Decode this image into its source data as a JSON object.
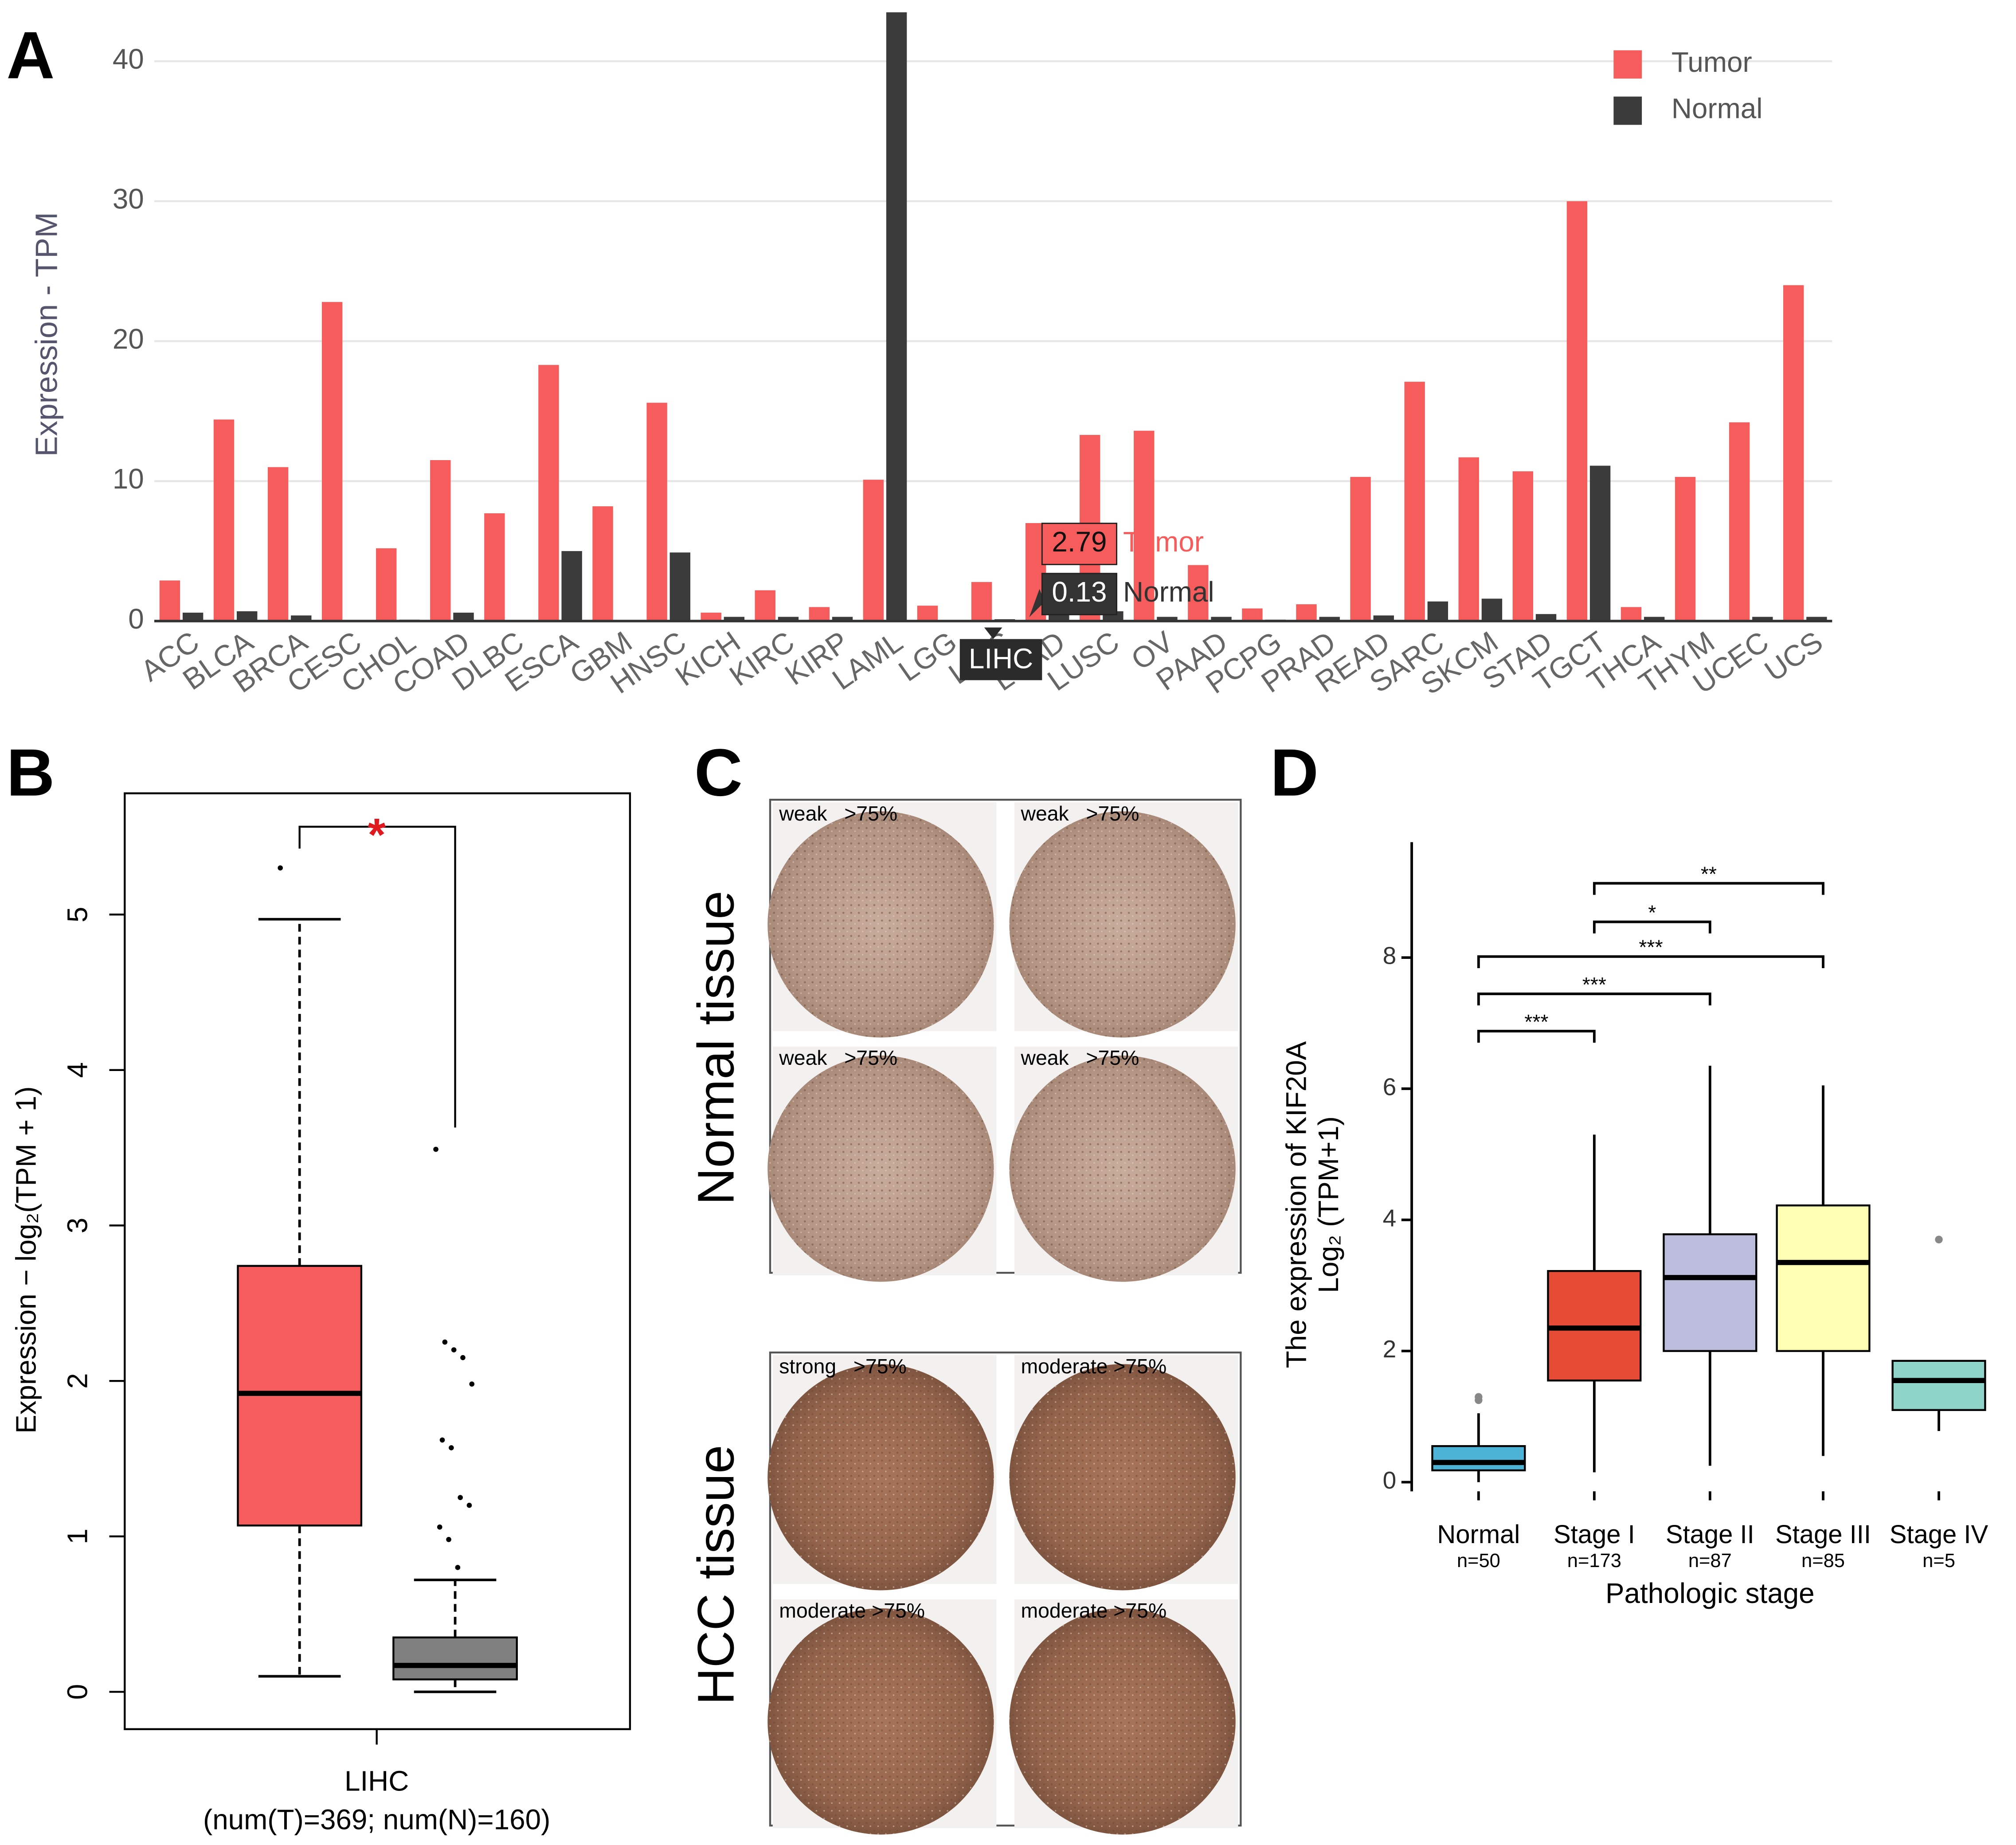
{
  "chart_data": [
    {
      "type": "bar",
      "panel_label": "A",
      "y_label": "Expression - TPM",
      "categories": [
        "ACC",
        "BLCA",
        "BRCA",
        "CESC",
        "CHOL",
        "COAD",
        "DLBC",
        "ESCA",
        "GBM",
        "HNSC",
        "KICH",
        "KIRC",
        "KIRP",
        "LAML",
        "LGG",
        "LIHC",
        "LUAD",
        "LUSC",
        "OV",
        "PAAD",
        "PCPG",
        "PRAD",
        "READ",
        "SARC",
        "SKCM",
        "STAD",
        "TGCT",
        "THCA",
        "THYM",
        "UCEC",
        "UCS"
      ],
      "series": [
        {
          "name": "Tumor",
          "color": "#f65c5c",
          "values": [
            2.9,
            14.4,
            11,
            22.8,
            5.2,
            11.5,
            7.7,
            18.3,
            8.2,
            15.6,
            0.6,
            2.2,
            1,
            10.1,
            1.1,
            2.79,
            7,
            13.3,
            13.6,
            4,
            0.9,
            1.2,
            10.3,
            17.1,
            11.7,
            10.7,
            30,
            1,
            10.3,
            14.2,
            24
          ]
        },
        {
          "name": "Normal",
          "color": "#3b3b3b",
          "values": [
            0.6,
            0.7,
            0.4,
            0,
            0.1,
            0.6,
            0,
            5,
            0,
            4.9,
            0.3,
            0.3,
            0.3,
            43.5,
            0,
            0.13,
            0.5,
            0.7,
            0.3,
            0.3,
            0.1,
            0.3,
            0.4,
            1.4,
            1.6,
            0.5,
            11.1,
            0.3,
            0,
            0.3,
            0.3
          ]
        }
      ],
      "ylim": [
        0,
        44
      ],
      "yticks": [
        0,
        10,
        20,
        30,
        40
      ],
      "grid": true,
      "legend": "top-right",
      "tooltip": {
        "category": "LIHC"
      }
    },
    {
      "type": "box",
      "panel_label": "B",
      "y_label": "Expression − log₂(TPM + 1)",
      "x_label": "LIHC",
      "x_sublabel": "(num(T)=369; num(N)=160)",
      "groups": [
        {
          "color": "#f65c5c",
          "min": 0.1,
          "q1": 1.07,
          "median": 1.92,
          "q3": 2.74,
          "max": 4.97,
          "outliers": [
            5.3
          ]
        },
        {
          "color": "#808080",
          "min": 0,
          "q1": 0.08,
          "median": 0.17,
          "q3": 0.35,
          "max": 0.72,
          "outliers": [
            3.49,
            2.25,
            2.2,
            2.15,
            1.98,
            1.62,
            1.57,
            1.25,
            1.2,
            1.06,
            0.98,
            0.8
          ]
        }
      ],
      "ylim": [
        -0.24,
        5.78
      ],
      "yticks": [
        0,
        1,
        2,
        3,
        4,
        5
      ],
      "significance": "*"
    },
    {
      "type": "box",
      "panel_label": "D",
      "y_label": [
        "The expression of KIF20A",
        "Log₂ (TPM+1)"
      ],
      "x_label": "Pathologic stage",
      "categories": [
        "Normal",
        "Stage I",
        "Stage II",
        "Stage III",
        "Stage IV"
      ],
      "count_labels": [
        "n=50",
        "n=173",
        "n=87",
        "n=85",
        "n=5"
      ],
      "groups": [
        {
          "color": "#4db3d6",
          "min": 0,
          "q1": 0.18,
          "median": 0.3,
          "q3": 0.55,
          "max": 1.05,
          "outliers": [
            1.25,
            1.3
          ]
        },
        {
          "color": "#e64b35",
          "min": 0.15,
          "q1": 1.55,
          "median": 2.35,
          "q3": 3.22,
          "max": 5.3,
          "outliers": []
        },
        {
          "color": "#bcbddc",
          "min": 0.25,
          "q1": 2.0,
          "median": 3.12,
          "q3": 3.78,
          "max": 6.35,
          "outliers": []
        },
        {
          "color": "#ffffb3",
          "min": 0.4,
          "q1": 2.0,
          "median": 3.35,
          "q3": 4.22,
          "max": 6.05,
          "outliers": []
        },
        {
          "color": "#8dd3c7",
          "min": 0.78,
          "q1": 1.1,
          "median": 1.55,
          "q3": 1.85,
          "max": 1.85,
          "outliers": [
            3.7
          ]
        }
      ],
      "ylim": [
        -0.14,
        9.76
      ],
      "yticks": [
        0,
        2,
        4,
        6,
        8
      ],
      "comparisons": [
        {
          "pair": [
            0,
            1
          ],
          "label": "***"
        },
        {
          "pair": [
            0,
            2
          ],
          "label": "***"
        },
        {
          "pair": [
            0,
            3
          ],
          "label": "***"
        },
        {
          "pair": [
            1,
            2
          ],
          "label": "*"
        },
        {
          "pair": [
            1,
            3
          ],
          "label": "**"
        }
      ]
    }
  ],
  "tissue_panel": {
    "panel_label": "C",
    "groups": [
      {
        "title": "Normal tissue",
        "images": [
          "weak   >75%",
          "weak   >75%",
          "weak   >75%",
          "weak   >75%"
        ]
      },
      {
        "title": "HCC tissue",
        "images": [
          "strong   >75%",
          "moderate >75%",
          "moderate >75%",
          "moderate >75%"
        ]
      }
    ]
  }
}
